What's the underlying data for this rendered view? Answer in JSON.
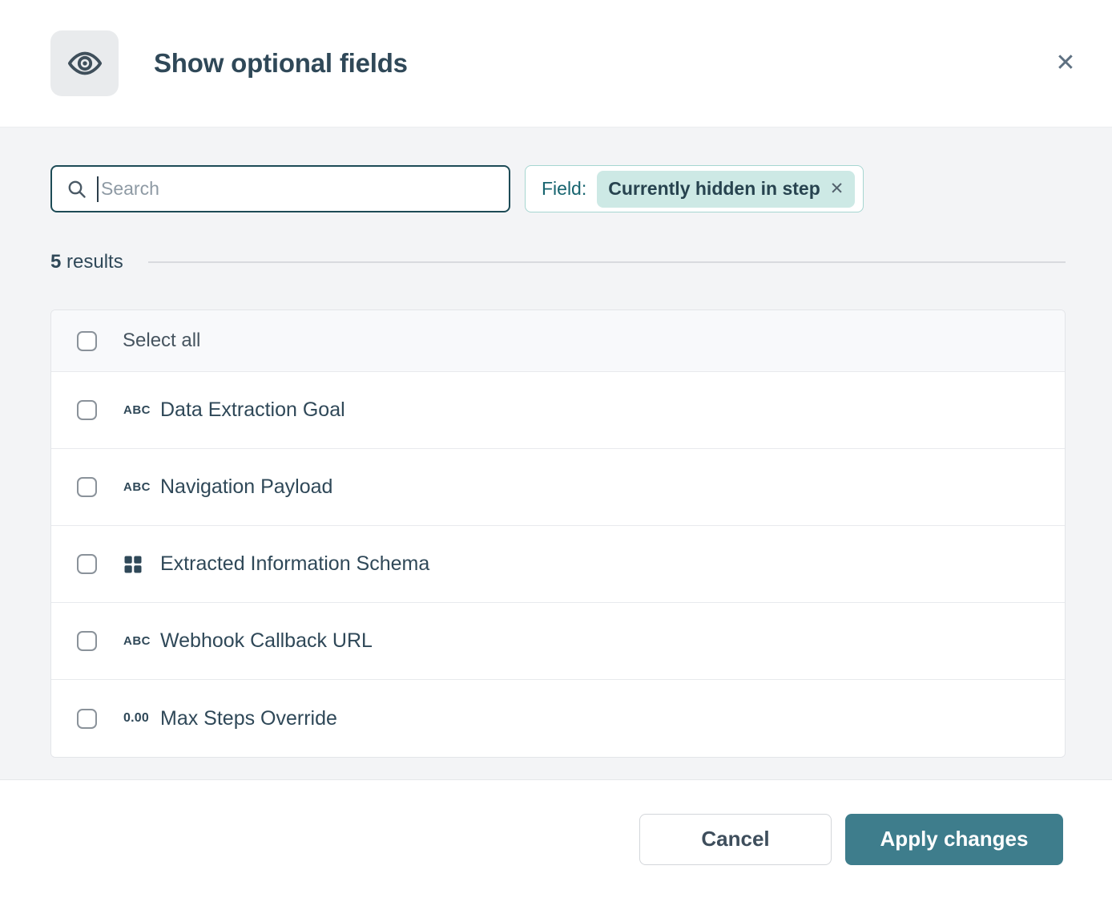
{
  "modal": {
    "title": "Show optional fields",
    "close_glyph": "✕"
  },
  "search": {
    "placeholder": "Search"
  },
  "filter": {
    "label": "Field:",
    "chip_text": "Currently hidden in step",
    "remove_glyph": "✕"
  },
  "results": {
    "count": "5",
    "label": "results"
  },
  "list": {
    "select_all_label": "Select all",
    "items": [
      {
        "icon": "text-field-icon",
        "icon_glyph": "ABC",
        "label": "Data Extraction Goal",
        "checked": false
      },
      {
        "icon": "text-field-icon",
        "icon_glyph": "ABC",
        "label": "Navigation Payload",
        "checked": false
      },
      {
        "icon": "schema-grid-icon",
        "icon_glyph": "",
        "label": "Extracted Information Schema",
        "checked": false
      },
      {
        "icon": "text-field-icon",
        "icon_glyph": "ABC",
        "label": "Webhook Callback URL",
        "checked": false
      },
      {
        "icon": "number-field-icon",
        "icon_glyph": "0.00",
        "label": "Max Steps Override",
        "checked": false
      }
    ]
  },
  "footer": {
    "cancel_label": "Cancel",
    "apply_label": "Apply changes"
  },
  "colors": {
    "accent_teal": "#3e7d8c",
    "chip_bg": "#cde9e5",
    "chip_border": "#a6d6d1",
    "filter_label_teal": "#17646f",
    "text_dark": "#2f4858",
    "body_bg": "#f3f4f6"
  }
}
